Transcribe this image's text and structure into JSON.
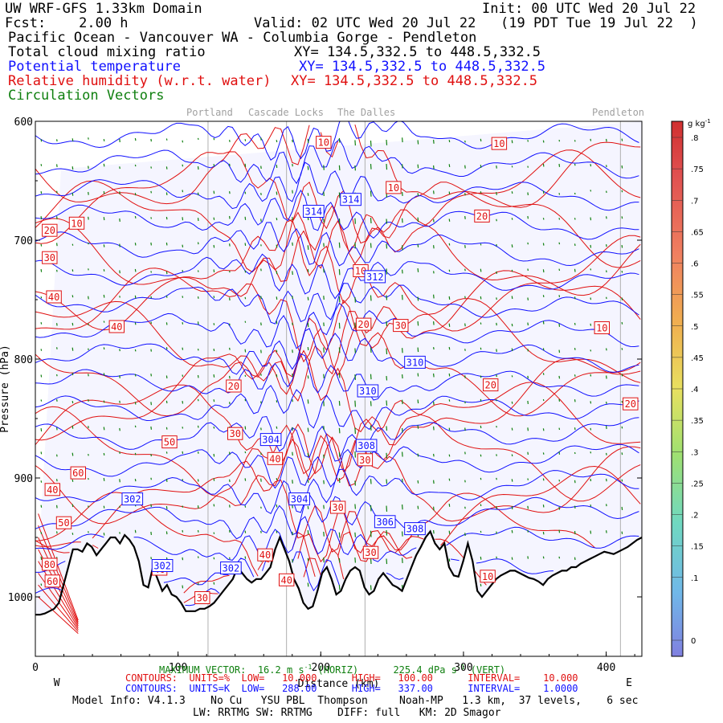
{
  "header": {
    "model_domain": "UW WRF-GFS 1.33km Domain",
    "init": "Init: 00 UTC Wed 20 Jul 22",
    "fcst": "Fcst:    2.00 h",
    "valid": "Valid: 02 UTC Wed 20 Jul 22   (19 PDT Tue 19 Jul 22  )",
    "region": "Pacific Ocean - Vancouver WA - Columbia Gorge - Pendleton",
    "field1": "Total cloud mixing ratio",
    "field1_xy": "XY= 134.5,332.5 to 448.5,332.5",
    "field2": "Potential temperature",
    "field2_xy": "XY= 134.5,332.5 to 448.5,332.5",
    "field3": "Relative humidity (w.r.t. water)",
    "field3_xy": "XY= 134.5,332.5 to 448.5,332.5",
    "field4": "Circulation Vectors"
  },
  "cities": [
    "Portland",
    "Cascade Locks",
    "The Dalles",
    "Pendleton"
  ],
  "chart_data": {
    "type": "cross-section",
    "title": "UW WRF-GFS 1.33km Domain",
    "xlabel": "Distance (km)",
    "ylabel": "Pressure (hPa)",
    "xlim": [
      0,
      425
    ],
    "ylim": [
      1050,
      600
    ],
    "x_ticks": [
      "0",
      "100",
      "200",
      "300",
      "400"
    ],
    "y_ticks": [
      "600",
      "700",
      "800",
      "900",
      "1000"
    ],
    "x_ends": [
      "W",
      "E"
    ],
    "city_x_km": [
      121,
      176,
      231,
      410
    ],
    "colorbar": {
      "unit": "g kg",
      "unit_superscript": "-1",
      "ticks": [
        ".8",
        ".75",
        ".7",
        ".65",
        ".6",
        ".55",
        ".5",
        ".45",
        ".4",
        ".35",
        ".3",
        ".25",
        ".2",
        ".15",
        ".1",
        "0"
      ],
      "min": 0,
      "max": 0.8,
      "high_color": "#d03030",
      "low_color": "#8080e0"
    },
    "theta_labels": [
      {
        "value": "314",
        "x": 195,
        "p": 676
      },
      {
        "value": "314",
        "x": 221,
        "p": 666
      },
      {
        "value": "312",
        "x": 238,
        "p": 731
      },
      {
        "value": "310",
        "x": 266,
        "p": 803
      },
      {
        "value": "310",
        "x": 233,
        "p": 827
      },
      {
        "value": "308",
        "x": 232,
        "p": 873
      },
      {
        "value": "308",
        "x": 266,
        "p": 943
      },
      {
        "value": "306",
        "x": 245,
        "p": 937
      },
      {
        "value": "304",
        "x": 165,
        "p": 868
      },
      {
        "value": "304",
        "x": 185,
        "p": 918
      },
      {
        "value": "302",
        "x": 68,
        "p": 918
      },
      {
        "value": "302",
        "x": 89,
        "p": 974
      },
      {
        "value": "302",
        "x": 137,
        "p": 976
      }
    ],
    "rh_labels": [
      {
        "value": "10",
        "x": 202,
        "p": 618
      },
      {
        "value": "10",
        "x": 325,
        "p": 619
      },
      {
        "value": "10",
        "x": 251,
        "p": 656
      },
      {
        "value": "10",
        "x": 29,
        "p": 686
      },
      {
        "value": "10",
        "x": 228,
        "p": 726
      },
      {
        "value": "10",
        "x": 397,
        "p": 774
      },
      {
        "value": "10",
        "x": 317,
        "p": 983
      },
      {
        "value": "20",
        "x": 10,
        "p": 692
      },
      {
        "value": "20",
        "x": 313,
        "p": 680
      },
      {
        "value": "20",
        "x": 230,
        "p": 771
      },
      {
        "value": "20",
        "x": 319,
        "p": 822
      },
      {
        "value": "20",
        "x": 417,
        "p": 838
      },
      {
        "value": "20",
        "x": 139,
        "p": 823
      },
      {
        "value": "30",
        "x": 10,
        "p": 715
      },
      {
        "value": "30",
        "x": 256,
        "p": 772
      },
      {
        "value": "30",
        "x": 140,
        "p": 863
      },
      {
        "value": "30",
        "x": 231,
        "p": 885
      },
      {
        "value": "30",
        "x": 212,
        "p": 925
      },
      {
        "value": "30",
        "x": 235,
        "p": 963
      },
      {
        "value": "30",
        "x": 117,
        "p": 1001
      },
      {
        "value": "40",
        "x": 13,
        "p": 748
      },
      {
        "value": "40",
        "x": 57,
        "p": 773
      },
      {
        "value": "40",
        "x": 168,
        "p": 884
      },
      {
        "value": "40",
        "x": 12,
        "p": 910
      },
      {
        "value": "40",
        "x": 161,
        "p": 965
      },
      {
        "value": "40",
        "x": 87,
        "p": 977
      },
      {
        "value": "40",
        "x": 176,
        "p": 986
      },
      {
        "value": "50",
        "x": 94,
        "p": 870
      },
      {
        "value": "50",
        "x": 20,
        "p": 938
      },
      {
        "value": "60",
        "x": 30,
        "p": 896
      },
      {
        "value": "60",
        "x": 12,
        "p": 987
      },
      {
        "value": "80",
        "x": 10,
        "p": 973
      }
    ],
    "terrain_p": [
      1015,
      1015,
      1014,
      1012,
      1010,
      1005,
      990,
      975,
      960,
      960,
      962,
      955,
      958,
      965,
      960,
      955,
      950,
      950,
      955,
      948,
      952,
      958,
      970,
      990,
      992,
      975,
      985,
      995,
      990,
      998,
      1000,
      1005,
      1012,
      1012,
      1012,
      1010,
      1010,
      1008,
      1005,
      1000,
      995,
      990,
      985,
      975,
      980,
      985,
      988,
      985,
      985,
      980,
      975,
      960,
      950,
      960,
      970,
      985,
      993,
      1005,
      1010,
      1008,
      995,
      980,
      975,
      985,
      998,
      995,
      985,
      978,
      975,
      978,
      992,
      998,
      995,
      985,
      980,
      985,
      990,
      992,
      995,
      985,
      975,
      965,
      958,
      950,
      945,
      955,
      960,
      955,
      975,
      982,
      983,
      970,
      955,
      970,
      995,
      1000,
      995,
      990,
      985,
      982,
      980,
      978,
      978,
      980,
      982,
      984,
      985,
      987,
      990,
      985,
      982,
      980,
      978,
      978,
      975,
      975,
      972,
      970,
      968,
      966,
      964,
      962,
      963,
      964,
      962,
      960,
      958,
      955,
      952,
      950
    ]
  },
  "footer": {
    "max_vector_label": "MAXIMUM VECTOR:",
    "max_vector_h": "16.2 m s",
    "max_vector_h_sup": "-1",
    "horiz": "(HORIZ)",
    "max_vector_v": "225.4 dPa s",
    "max_vector_v_sup": "-1",
    "vert": "(VERT)",
    "rh_contours": "CONTOURS:  UNITS=%  LOW=   10.000      HIGH=   100.00      INTERVAL=    10.000",
    "theta_contours": "CONTOURS:  UNITS=K  LOW=   288.00      HIGH=   337.00      INTERVAL=    1.0000",
    "model_info": "Model Info: V4.1.3    No Cu   YSU PBL  Thompson     Noah-MP   1.3 km,  37 levels,    6 sec",
    "model_info2": "LW: RRTMG SW: RRTMG    DIFF: full   KM: 2D Smagor"
  },
  "colors": {
    "theta": "#1010ff",
    "rh": "#e01010",
    "vectors": "#108010",
    "terrain": "#000000",
    "cloud_fill": "#f5f5ff",
    "city_lines": "#b0b0b0"
  }
}
